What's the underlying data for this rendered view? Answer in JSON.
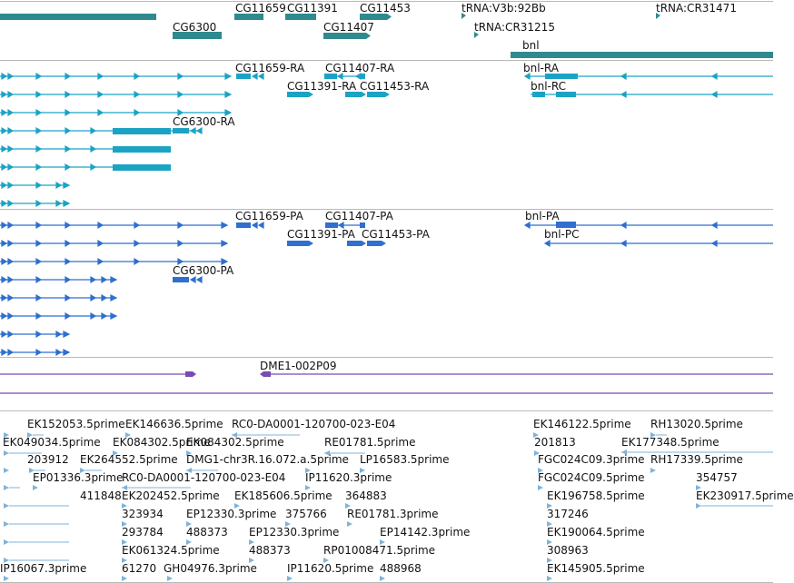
{
  "colors": {
    "gene": "#2f8a8f",
    "transcript_ra": "#1ba3c4",
    "transcript_pa": "#2e6fcf",
    "contig": "#7a4bb0",
    "est": "#7fb3d9",
    "separator": "#b9b9b9",
    "label": "#111111"
  },
  "tracks": {
    "genes": {
      "labels": [
        "CG11659",
        "CG11391",
        "CG11453",
        "tRNA:V3b:92Bb",
        "tRNA:CR31471",
        "CG6300",
        "CG11407",
        "tRNA:CR31215",
        "bnl"
      ]
    },
    "ra": {
      "labels": [
        "CG11659-RA",
        "CG11407-RA",
        "bnl-RA",
        "CG11391-RA",
        "CG11453-RA",
        "bnl-RC",
        "CG6300-RA"
      ]
    },
    "pa": {
      "labels": [
        "CG11659-PA",
        "CG11407-PA",
        "bnl-PA",
        "CG11391-PA",
        "CG11453-PA",
        "bnl-PC",
        "CG6300-PA"
      ]
    },
    "contig": {
      "labels": [
        "DME1-002P09"
      ]
    },
    "est": {
      "labels": [
        "EK152053.5prime",
        "EK146636.5prime",
        "RC0-DA0001-120700-023-E04",
        "EK146122.5prime",
        "RH13020.5prime",
        "EK049034.5prime",
        "EK084302.5prime",
        "EK084302.5prime",
        "RE01781.5prime",
        "201813",
        "EK177348.5prime",
        "203912",
        "EK264552.5prime",
        "DMG1-chr3R.16.072.a.5prime",
        "LP16583.5prime",
        "FGC024C09.3prime",
        "RH17339.5prime",
        "EP01336.3prime",
        "RC0-DA0001-120700-023-E04",
        "IP11620.3prime",
        "FGC024C09.5prime",
        "354757",
        "411848",
        "EK202452.5prime",
        "EK185606.5prime",
        "364883",
        "EK196758.5prime",
        "EK230917.5prime",
        "323934",
        "EP12330.3prime",
        "375766",
        "RE01781.3prime",
        "317246",
        "293784",
        "488373",
        "EP12330.3prime",
        "EP14142.3prime",
        "EK190064.5prime",
        "EK061324.5prime",
        "488373",
        "RP01008471.5prime",
        "308963",
        "IP16067.3prime",
        "61270",
        "GH04976.3prime",
        "IP11620.5prime",
        "488968",
        "EK145905.5prime"
      ]
    }
  }
}
